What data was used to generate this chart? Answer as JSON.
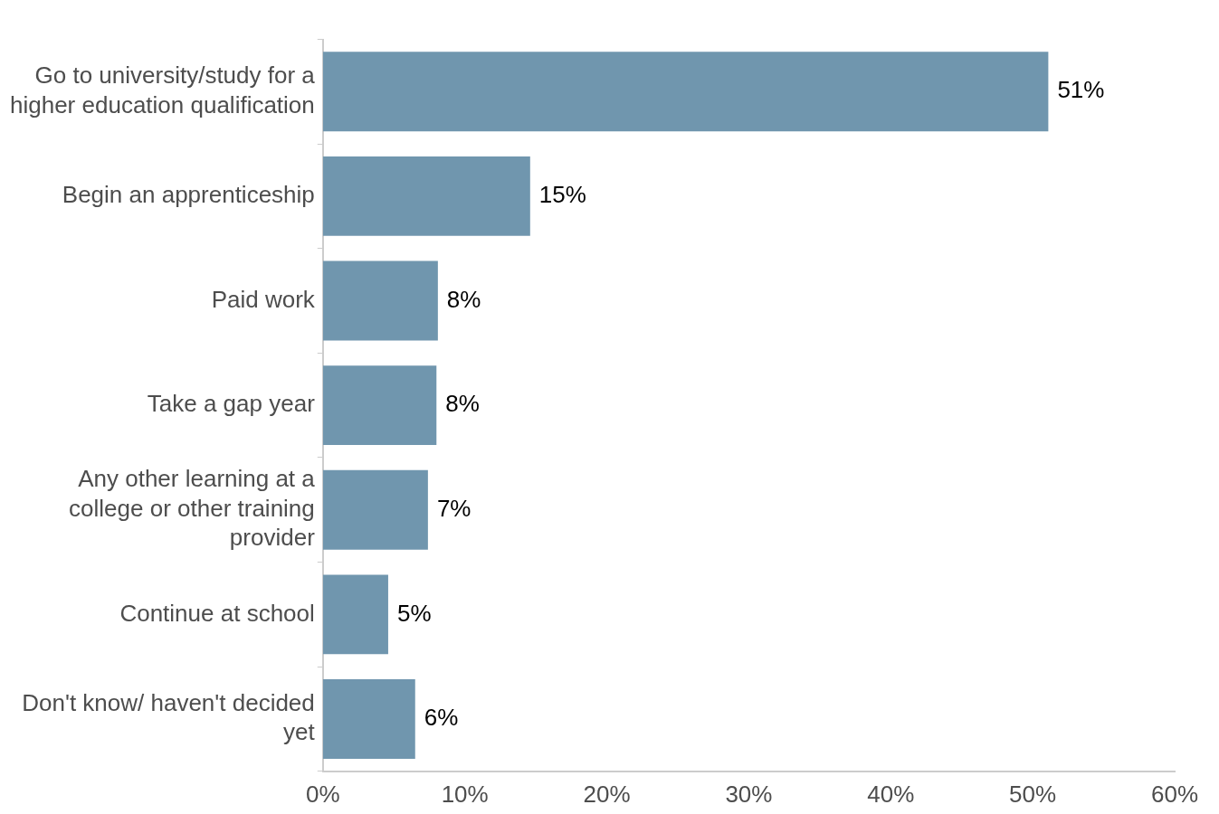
{
  "chart_data": {
    "type": "bar",
    "orientation": "horizontal",
    "categories": [
      "Go to university/study for a higher education qualification",
      "Begin an apprenticeship",
      "Paid work",
      "Take a gap year",
      "Any other learning at a college or other training provider",
      "Continue at school",
      "Don't know/ haven't decided yet"
    ],
    "values": [
      51.1,
      14.6,
      8.1,
      8.0,
      7.4,
      4.6,
      6.5
    ],
    "value_labels": [
      "51%",
      "15%",
      "8%",
      "8%",
      "7%",
      "5%",
      "6%"
    ],
    "color": "#7096ae",
    "xlim": [
      0,
      60
    ],
    "xticks": [
      {
        "value": 0,
        "label": "0%"
      },
      {
        "value": 10,
        "label": "10%"
      },
      {
        "value": 20,
        "label": "20%"
      },
      {
        "value": 30,
        "label": "30%"
      },
      {
        "value": 40,
        "label": "40%"
      },
      {
        "value": 50,
        "label": "50%"
      },
      {
        "value": 60,
        "label": "60%"
      }
    ],
    "grid": false,
    "legend": false
  }
}
